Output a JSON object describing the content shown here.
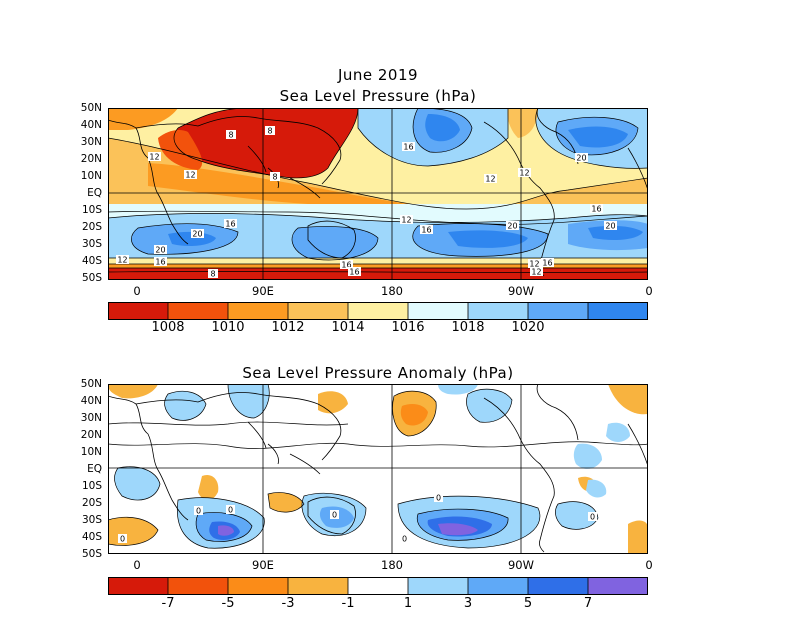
{
  "panels": [
    {
      "id": "slp",
      "title_line1": "June 2019",
      "title_line2": "Sea Level Pressure (hPa)",
      "lat_labels": [
        "50N",
        "40N",
        "30N",
        "20N",
        "10N",
        "EQ",
        "10S",
        "20S",
        "30S",
        "40S",
        "50S"
      ],
      "lon_labels": [
        "0",
        "90E",
        "180",
        "90W",
        "0"
      ],
      "contour_labels": [
        "8",
        "8",
        "12",
        "12",
        "8",
        "16",
        "12",
        "12",
        "20",
        "16",
        "12",
        "16",
        "20",
        "20",
        "16",
        "20",
        "16",
        "20",
        "12",
        "16",
        "12",
        "16",
        "8",
        "16",
        "12"
      ],
      "colorbar": {
        "colors": [
          "#d61a0a",
          "#f2520c",
          "#fc9b22",
          "#fbc259",
          "#fef0a2",
          "#e2fbfe",
          "#9ed7fb",
          "#5fa9f7",
          "#2f86ef"
        ],
        "labels": [
          "1008",
          "1010",
          "1012",
          "1014",
          "1016",
          "1018",
          "1020"
        ]
      }
    },
    {
      "id": "anom",
      "title_line1": "Sea Level Pressure Anomaly (hPa)",
      "lat_labels": [
        "50N",
        "40N",
        "30N",
        "20N",
        "10N",
        "EQ",
        "10S",
        "20S",
        "30S",
        "40S",
        "50S"
      ],
      "lon_labels": [
        "0",
        "90E",
        "180",
        "90W",
        "0"
      ],
      "contour_labels": [
        "0",
        "0",
        "0",
        "0",
        "0",
        "0",
        "0"
      ],
      "colorbar": {
        "colors": [
          "#d61a0a",
          "#f2520c",
          "#fb8c18",
          "#f8b33f",
          "#ffffff",
          "#9ed7fb",
          "#5fa9f7",
          "#2f6fe8",
          "#8063e0"
        ],
        "labels": [
          "-7",
          "-5",
          "-3",
          "-1",
          "1",
          "3",
          "5",
          "7"
        ]
      }
    }
  ]
}
